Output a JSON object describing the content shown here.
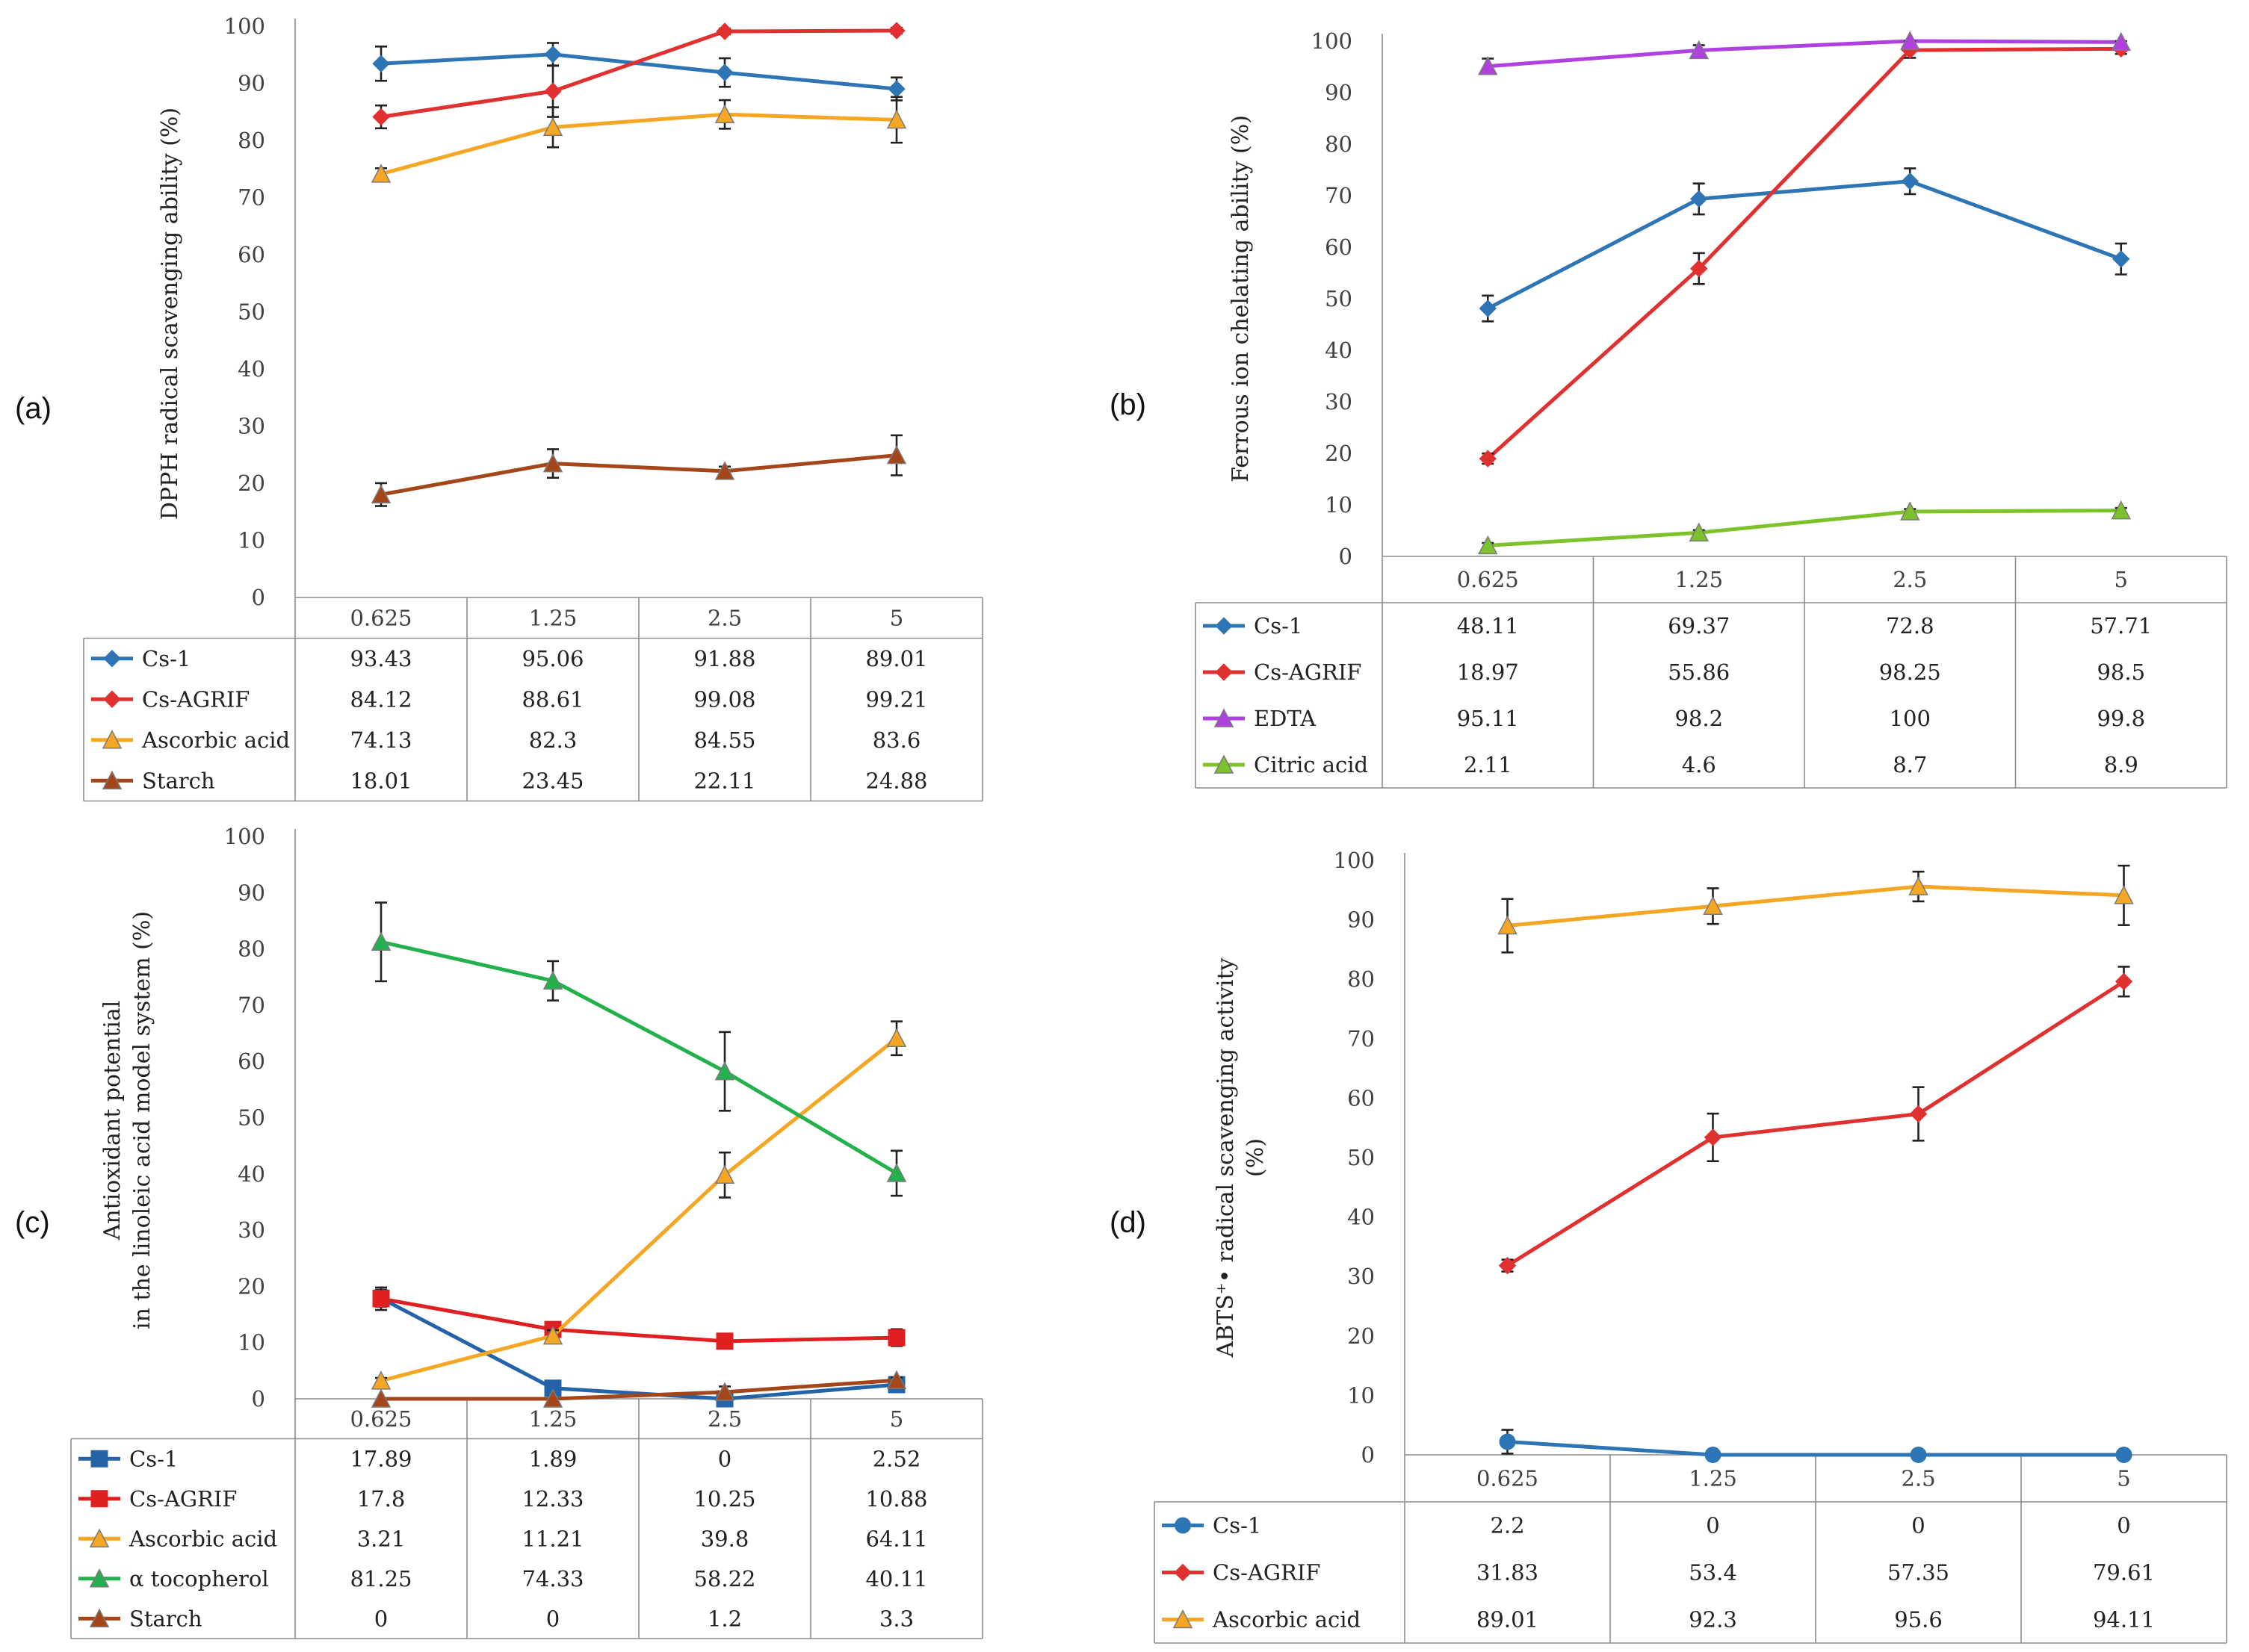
{
  "chart_data": [
    {
      "type": "line",
      "panel": "(a)",
      "ylabel": "DPPH radical scavenging ability (%)",
      "ylim": [
        0,
        100
      ],
      "yticks": [
        "0",
        "10",
        "20",
        "30",
        "40",
        "50",
        "60",
        "70",
        "80",
        "90",
        "100"
      ],
      "categories": [
        "0.625",
        "1.25",
        "2.5",
        "5"
      ],
      "series": [
        {
          "name": "Cs-1",
          "color": "#2e75b6",
          "marker": "diamond",
          "values": [
            93.43,
            95.06,
            91.88,
            89.01
          ],
          "errors": [
            3,
            2,
            2.5,
            2
          ]
        },
        {
          "name": "Cs-AGRIF",
          "color": "#e03030",
          "marker": "diamond",
          "values": [
            84.12,
            88.61,
            99.08,
            99.21
          ],
          "errors": [
            2,
            4.5,
            0.5,
            0.5
          ]
        },
        {
          "name": "Ascorbic acid",
          "color": "#f5a623",
          "marker": "triangle",
          "values": [
            74.13,
            82.3,
            84.55,
            83.6
          ],
          "errors": [
            1,
            3.5,
            2.5,
            4
          ]
        },
        {
          "name": "Starch",
          "color": "#a5461a",
          "marker": "triangle",
          "values": [
            18.01,
            23.45,
            22.11,
            24.88
          ],
          "errors": [
            2,
            2.5,
            0.8,
            3.5
          ]
        }
      ]
    },
    {
      "type": "line",
      "panel": "(b)",
      "ylabel": "Ferrous ion chelating ability (%)",
      "ylim": [
        0,
        100
      ],
      "yticks": [
        "0",
        "10",
        "20",
        "30",
        "40",
        "50",
        "60",
        "70",
        "80",
        "90",
        "100"
      ],
      "categories": [
        "0.625",
        "1.25",
        "2.5",
        "5"
      ],
      "series": [
        {
          "name": "Cs-1",
          "color": "#2e75b6",
          "marker": "diamond",
          "values": [
            48.11,
            69.37,
            72.8,
            57.71
          ],
          "errors": [
            2.5,
            3,
            2.5,
            3
          ]
        },
        {
          "name": "Cs-AGRIF",
          "color": "#e03030",
          "marker": "diamond",
          "values": [
            18.97,
            55.86,
            98.25,
            98.5
          ],
          "errors": [
            1,
            3,
            1.5,
            1
          ]
        },
        {
          "name": "EDTA",
          "color": "#b040e0",
          "marker": "triangle",
          "values": [
            95.11,
            98.2,
            100,
            99.8
          ],
          "errors": [
            1.5,
            1,
            0.5,
            0.5
          ]
        },
        {
          "name": "Citric acid",
          "color": "#7cc22a",
          "marker": "triangle",
          "values": [
            2.11,
            4.6,
            8.7,
            8.9
          ],
          "errors": [
            0.5,
            0.5,
            0.5,
            0.5
          ]
        }
      ]
    },
    {
      "type": "line",
      "panel": "(c)",
      "ylabel_lines": [
        "Antioxidant potential",
        "in the linoleic acid model system (%)"
      ],
      "ylim": [
        0,
        100
      ],
      "yticks": [
        "0",
        "10",
        "20",
        "30",
        "40",
        "50",
        "60",
        "70",
        "80",
        "90",
        "100"
      ],
      "categories": [
        "0.625",
        "1.25",
        "2.5",
        "5"
      ],
      "series": [
        {
          "name": "Cs-1",
          "color": "#2563a8",
          "marker": "square",
          "values": [
            17.89,
            1.89,
            0,
            2.52
          ],
          "errors": [
            1.5,
            0.5,
            0.5,
            1
          ]
        },
        {
          "name": "Cs-AGRIF",
          "color": "#e02020",
          "marker": "square",
          "values": [
            17.8,
            12.33,
            10.25,
            10.88
          ],
          "errors": [
            2,
            1,
            1,
            1.5
          ]
        },
        {
          "name": "Ascorbic acid",
          "color": "#f5a623",
          "marker": "triangle",
          "values": [
            3.21,
            11.21,
            39.8,
            64.11
          ],
          "errors": [
            0.5,
            1,
            4,
            3
          ]
        },
        {
          "name": "α tocopherol",
          "color": "#22b14c",
          "marker": "triangle",
          "values": [
            81.25,
            74.33,
            58.22,
            40.11
          ],
          "errors": [
            7,
            3.5,
            7,
            4
          ]
        },
        {
          "name": "Starch",
          "color": "#a5461a",
          "marker": "triangle",
          "values": [
            0,
            0,
            1.2,
            3.3
          ],
          "errors": [
            0,
            0,
            1,
            0.5
          ]
        }
      ]
    },
    {
      "type": "line",
      "panel": "(d)",
      "ylabel_lines": [
        "ABTS⁺• radical scavenging activity",
        "(%)"
      ],
      "ylim": [
        0,
        100
      ],
      "yticks": [
        "0",
        "10",
        "20",
        "30",
        "40",
        "50",
        "60",
        "70",
        "80",
        "90",
        "100"
      ],
      "categories": [
        "0.625",
        "1.25",
        "2.5",
        "5"
      ],
      "series": [
        {
          "name": "Cs-1",
          "color": "#2e75b6",
          "marker": "circle",
          "values": [
            2.2,
            0,
            0,
            0
          ],
          "errors": [
            2,
            0,
            0,
            0
          ]
        },
        {
          "name": "Cs-AGRIF",
          "color": "#e03030",
          "marker": "diamond",
          "values": [
            31.83,
            53.4,
            57.35,
            79.61
          ],
          "errors": [
            1,
            4,
            4.5,
            2.5
          ]
        },
        {
          "name": "Ascorbic acid",
          "color": "#f5a623",
          "marker": "triangle",
          "values": [
            89.01,
            92.3,
            95.6,
            94.11
          ],
          "errors": [
            4.5,
            3,
            2.5,
            5
          ]
        }
      ]
    }
  ]
}
